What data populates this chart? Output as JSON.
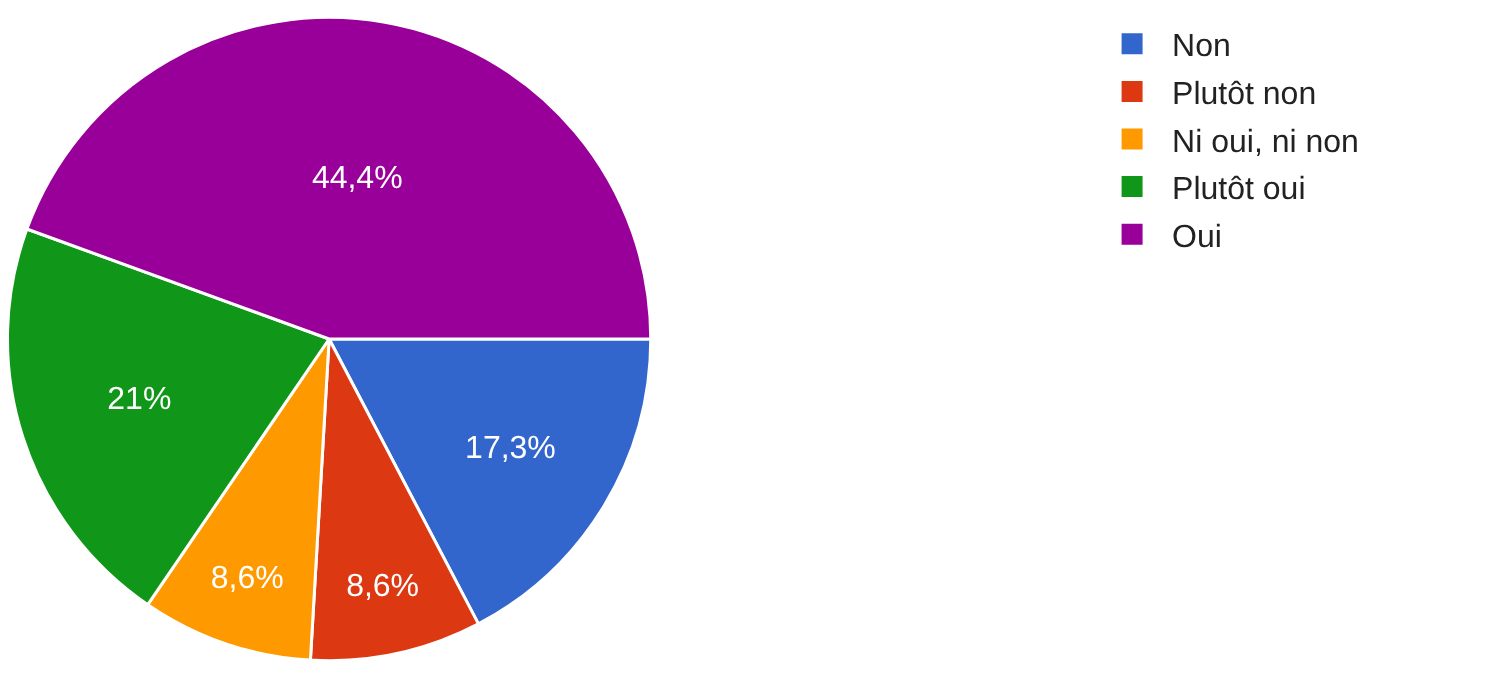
{
  "chart_data": {
    "type": "pie",
    "categories": [
      "Non",
      "Plutôt non",
      "Ni oui, ni non",
      "Plutôt oui",
      "Oui"
    ],
    "values": [
      17.3,
      8.6,
      8.6,
      21,
      44.4
    ],
    "colors": [
      "#3366cc",
      "#dc3912",
      "#ff9900",
      "#109618",
      "#990099"
    ],
    "value_labels": [
      "17,3%",
      "8,6%",
      "8,6%",
      "21%",
      "44,4%"
    ],
    "legend": "right"
  }
}
